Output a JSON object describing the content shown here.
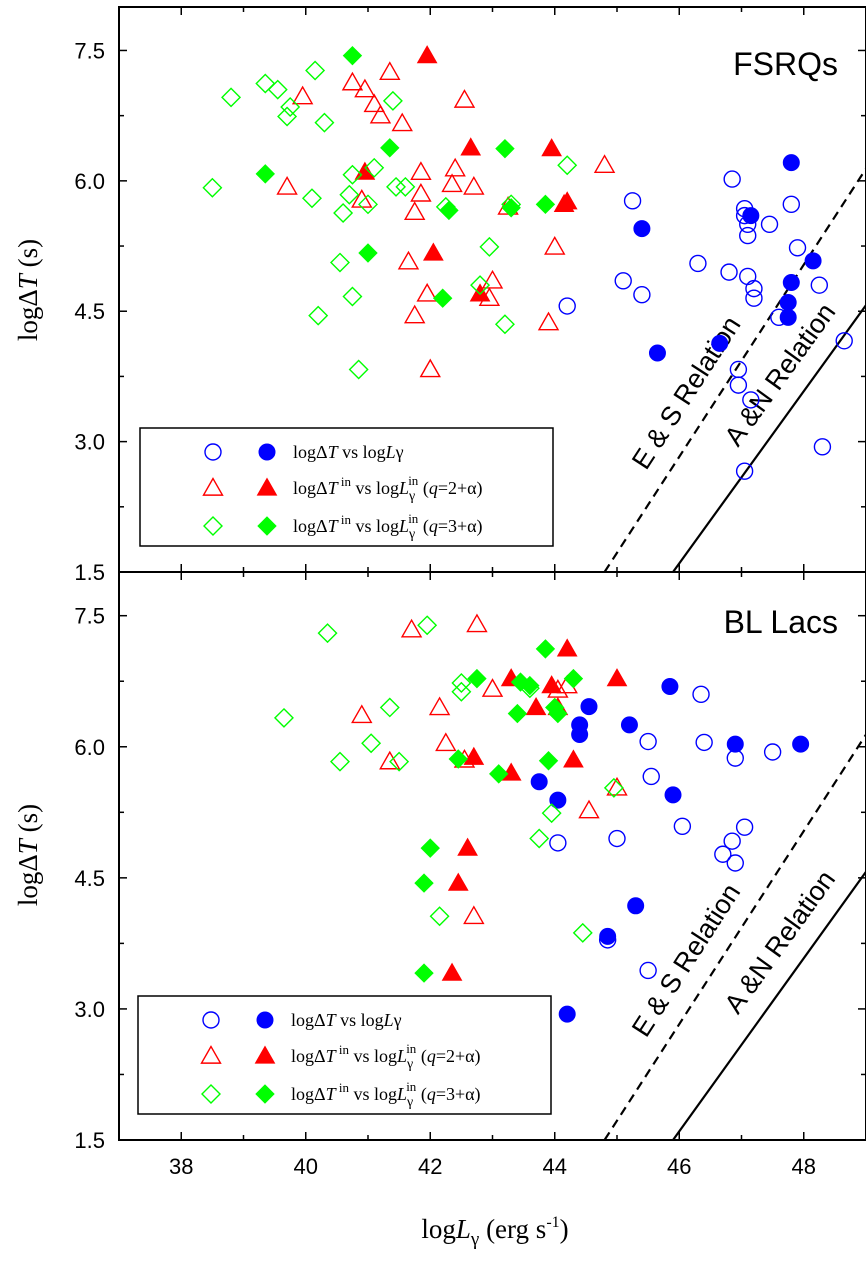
{
  "figure": {
    "xlabel": "logLγ (erg s-1)",
    "ylabel": "logΔT (s)"
  },
  "chart_data": [
    {
      "type": "scatter",
      "title": "FSRQs",
      "xlim": [
        37,
        49
      ],
      "ylim": [
        1.5,
        8.0
      ],
      "xticks": [
        "38",
        "40",
        "42",
        "44",
        "46",
        "48"
      ],
      "yticks": [
        "1.5",
        "3.0",
        "4.5",
        "6.0",
        "7.5"
      ],
      "legend_position": "bottom-left",
      "relations": [
        {
          "label": "E & S Relation",
          "style": "dashed",
          "points": [
            [
              44.8,
              1.5
            ],
            [
              49.0,
              6.14
            ]
          ]
        },
        {
          "label": "A &N Relation",
          "style": "solid",
          "points": [
            [
              45.9,
              1.5
            ],
            [
              49.0,
              4.57
            ]
          ]
        }
      ],
      "series": [
        {
          "name": "logΔT vs logLγ",
          "marker": "circle",
          "fill": false,
          "color": "#0000ff",
          "points": [
            [
              44.2,
              4.56
            ],
            [
              45.1,
              4.85
            ],
            [
              45.25,
              5.77
            ],
            [
              45.4,
              4.69
            ],
            [
              46.3,
              5.05
            ],
            [
              46.8,
              4.95
            ],
            [
              46.85,
              6.02
            ],
            [
              46.95,
              3.65
            ],
            [
              46.95,
              3.83
            ],
            [
              47.05,
              2.66
            ],
            [
              47.05,
              5.6
            ],
            [
              47.05,
              5.68
            ],
            [
              47.1,
              5.37
            ],
            [
              47.1,
              5.5
            ],
            [
              47.1,
              4.9
            ],
            [
              47.15,
              3.48
            ],
            [
              47.2,
              4.65
            ],
            [
              47.2,
              4.76
            ],
            [
              47.45,
              5.5
            ],
            [
              47.6,
              4.43
            ],
            [
              47.8,
              5.73
            ],
            [
              47.9,
              5.23
            ],
            [
              48.25,
              4.8
            ],
            [
              48.3,
              2.94
            ],
            [
              48.65,
              4.16
            ]
          ]
        },
        {
          "name": "logΔT vs logLγ",
          "marker": "circle",
          "fill": true,
          "color": "#0000ff",
          "points": [
            [
              45.4,
              5.45
            ],
            [
              45.65,
              4.02
            ],
            [
              46.65,
              4.13
            ],
            [
              47.15,
              5.6
            ],
            [
              47.75,
              4.43
            ],
            [
              47.75,
              4.6
            ],
            [
              47.8,
              4.83
            ],
            [
              47.8,
              6.21
            ],
            [
              48.15,
              5.08
            ]
          ]
        },
        {
          "name": "logΔT in vs logLγ in (q=2+α)",
          "marker": "triangle",
          "fill": false,
          "color": "#ff0000",
          "points": [
            [
              39.7,
              5.93
            ],
            [
              39.95,
              6.97
            ],
            [
              40.75,
              7.13
            ],
            [
              40.9,
              5.78
            ],
            [
              40.95,
              7.05
            ],
            [
              41.1,
              6.88
            ],
            [
              41.2,
              6.75
            ],
            [
              41.35,
              7.25
            ],
            [
              41.55,
              6.66
            ],
            [
              41.65,
              5.07
            ],
            [
              41.75,
              4.45
            ],
            [
              41.75,
              5.64
            ],
            [
              41.85,
              6.1
            ],
            [
              41.85,
              5.85
            ],
            [
              41.95,
              4.7
            ],
            [
              42.0,
              3.83
            ],
            [
              42.35,
              5.96
            ],
            [
              42.4,
              6.14
            ],
            [
              42.55,
              6.93
            ],
            [
              42.7,
              5.93
            ],
            [
              42.95,
              4.65
            ],
            [
              43.0,
              4.85
            ],
            [
              43.25,
              5.7
            ],
            [
              43.9,
              4.37
            ],
            [
              44.0,
              5.24
            ],
            [
              44.8,
              6.18
            ]
          ]
        },
        {
          "name": "logΔT in vs logLγ in (q=2+α)",
          "marker": "triangle",
          "fill": true,
          "color": "#ff0000",
          "points": [
            [
              40.95,
              6.1
            ],
            [
              41.95,
              7.44
            ],
            [
              42.05,
              5.17
            ],
            [
              42.65,
              6.38
            ],
            [
              42.8,
              4.7
            ],
            [
              43.95,
              6.37
            ],
            [
              44.15,
              5.73
            ],
            [
              44.2,
              5.76
            ]
          ]
        },
        {
          "name": "logΔT in vs logLγ in (q=3+α)",
          "marker": "diamond",
          "fill": false,
          "color": "#00ff00",
          "points": [
            [
              38.5,
              5.92
            ],
            [
              38.8,
              6.96
            ],
            [
              39.35,
              7.12
            ],
            [
              39.55,
              7.05
            ],
            [
              39.7,
              6.74
            ],
            [
              39.75,
              6.85
            ],
            [
              40.1,
              5.8
            ],
            [
              40.15,
              7.27
            ],
            [
              40.2,
              4.45
            ],
            [
              40.3,
              6.67
            ],
            [
              40.55,
              5.06
            ],
            [
              40.6,
              5.63
            ],
            [
              40.7,
              5.84
            ],
            [
              40.75,
              6.07
            ],
            [
              40.75,
              4.67
            ],
            [
              40.85,
              3.83
            ],
            [
              41.0,
              5.73
            ],
            [
              41.1,
              6.15
            ],
            [
              41.4,
              6.92
            ],
            [
              41.45,
              5.93
            ],
            [
              41.6,
              5.93
            ],
            [
              42.25,
              5.7
            ],
            [
              42.8,
              4.8
            ],
            [
              42.95,
              5.24
            ],
            [
              43.2,
              4.35
            ],
            [
              43.3,
              5.73
            ],
            [
              44.2,
              6.18
            ]
          ]
        },
        {
          "name": "logΔT in vs logLγ in (q=3+α)",
          "marker": "diamond",
          "fill": true,
          "color": "#00ff00",
          "points": [
            [
              39.35,
              6.08
            ],
            [
              40.75,
              7.44
            ],
            [
              41.0,
              5.17
            ],
            [
              41.35,
              6.38
            ],
            [
              42.2,
              4.65
            ],
            [
              42.3,
              5.66
            ],
            [
              43.2,
              6.37
            ],
            [
              43.3,
              5.69
            ],
            [
              43.85,
              5.73
            ]
          ]
        }
      ]
    },
    {
      "type": "scatter",
      "title": "BL Lacs",
      "xlim": [
        37,
        49
      ],
      "ylim": [
        1.5,
        8.0
      ],
      "xticks": [
        "38",
        "40",
        "42",
        "44",
        "46",
        "48"
      ],
      "yticks": [
        "1.5",
        "3.0",
        "4.5",
        "6.0",
        "7.5"
      ],
      "legend_position": "bottom-left",
      "relations": [
        {
          "label": "E & S Relation",
          "style": "dashed",
          "points": [
            [
              44.8,
              1.5
            ],
            [
              49.0,
              6.14
            ]
          ]
        },
        {
          "label": "A &N Relation",
          "style": "solid",
          "points": [
            [
              45.9,
              1.5
            ],
            [
              49.0,
              4.57
            ]
          ]
        }
      ],
      "series": [
        {
          "name": "logΔT vs logLγ",
          "marker": "circle",
          "fill": false,
          "color": "#0000ff",
          "points": [
            [
              44.05,
              4.9
            ],
            [
              44.85,
              3.79
            ],
            [
              45.0,
              4.95
            ],
            [
              45.5,
              6.06
            ],
            [
              45.5,
              3.44
            ],
            [
              45.55,
              5.66
            ],
            [
              46.05,
              5.09
            ],
            [
              46.35,
              6.6
            ],
            [
              46.4,
              6.05
            ],
            [
              46.7,
              4.77
            ],
            [
              46.85,
              4.92
            ],
            [
              46.9,
              5.87
            ],
            [
              46.9,
              4.67
            ],
            [
              47.05,
              5.08
            ],
            [
              47.5,
              5.94
            ]
          ]
        },
        {
          "name": "logΔT vs logLγ",
          "marker": "circle",
          "fill": true,
          "color": "#0000ff",
          "points": [
            [
              43.75,
              5.6
            ],
            [
              44.05,
              5.39
            ],
            [
              44.2,
              2.94
            ],
            [
              44.4,
              6.14
            ],
            [
              44.4,
              6.25
            ],
            [
              44.55,
              6.46
            ],
            [
              44.85,
              3.83
            ],
            [
              45.2,
              6.25
            ],
            [
              45.3,
              4.18
            ],
            [
              45.85,
              6.69
            ],
            [
              45.9,
              5.45
            ],
            [
              46.9,
              6.03
            ],
            [
              47.95,
              6.03
            ]
          ]
        },
        {
          "name": "logΔT in vs logLγ in (q=2+α)",
          "marker": "triangle",
          "fill": false,
          "color": "#ff0000",
          "points": [
            [
              40.9,
              6.36
            ],
            [
              41.35,
              5.83
            ],
            [
              41.7,
              7.34
            ],
            [
              42.15,
              6.45
            ],
            [
              42.25,
              6.04
            ],
            [
              42.55,
              5.85
            ],
            [
              42.7,
              4.06
            ],
            [
              42.75,
              7.4
            ],
            [
              43.0,
              6.66
            ],
            [
              44.05,
              6.65
            ],
            [
              44.2,
              6.7
            ],
            [
              44.55,
              5.27
            ],
            [
              45.0,
              5.53
            ]
          ]
        },
        {
          "name": "logΔT in vs logLγ in (q=2+α)",
          "marker": "triangle",
          "fill": true,
          "color": "#ff0000",
          "points": [
            [
              42.35,
              3.41
            ],
            [
              42.45,
              4.44
            ],
            [
              42.6,
              4.84
            ],
            [
              42.7,
              5.88
            ],
            [
              43.3,
              5.7
            ],
            [
              43.3,
              6.78
            ],
            [
              43.7,
              6.45
            ],
            [
              43.95,
              6.7
            ],
            [
              44.05,
              6.45
            ],
            [
              44.2,
              7.12
            ],
            [
              44.3,
              5.85
            ],
            [
              45.0,
              6.78
            ]
          ]
        },
        {
          "name": "logΔT in vs logLγ in (q=3+α)",
          "marker": "diamond",
          "fill": false,
          "color": "#00ff00",
          "points": [
            [
              39.65,
              6.33
            ],
            [
              40.35,
              7.3
            ],
            [
              40.55,
              5.83
            ],
            [
              41.05,
              6.04
            ],
            [
              41.35,
              6.45
            ],
            [
              41.5,
              5.83
            ],
            [
              41.95,
              7.39
            ],
            [
              42.15,
              4.06
            ],
            [
              42.5,
              6.63
            ],
            [
              42.5,
              6.73
            ],
            [
              43.6,
              6.67
            ],
            [
              43.75,
              4.95
            ],
            [
              43.95,
              5.24
            ],
            [
              44.45,
              3.87
            ],
            [
              44.95,
              5.53
            ]
          ]
        },
        {
          "name": "logΔT in vs logLγ in (q=3+α)",
          "marker": "diamond",
          "fill": true,
          "color": "#00ff00",
          "points": [
            [
              41.9,
              3.41
            ],
            [
              41.9,
              4.44
            ],
            [
              42.0,
              4.84
            ],
            [
              42.45,
              5.86
            ],
            [
              42.75,
              6.78
            ],
            [
              43.1,
              5.69
            ],
            [
              43.4,
              6.38
            ],
            [
              43.45,
              6.74
            ],
            [
              43.6,
              6.7
            ],
            [
              43.85,
              7.12
            ],
            [
              43.9,
              5.84
            ],
            [
              44.0,
              6.45
            ],
            [
              44.05,
              6.38
            ],
            [
              44.3,
              6.78
            ]
          ]
        }
      ]
    }
  ]
}
